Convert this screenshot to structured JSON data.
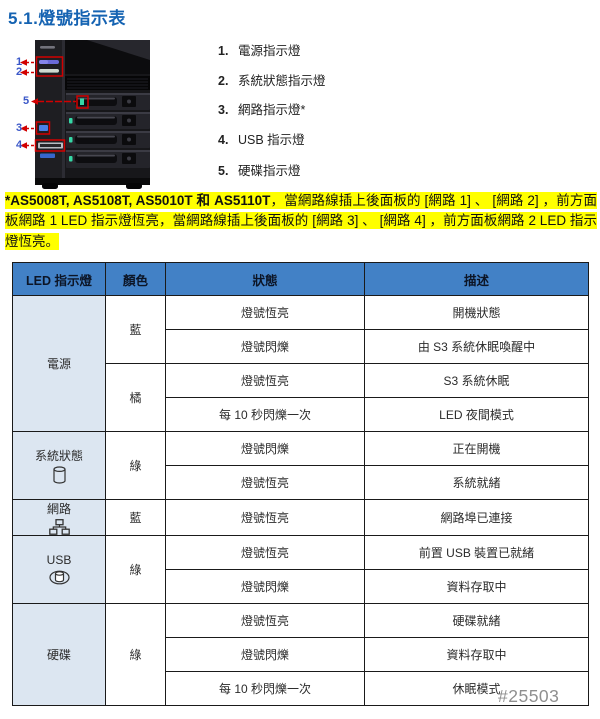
{
  "page": {
    "title": "5.1.燈號指示表",
    "watermark": "#25503"
  },
  "colors": {
    "title": "#1563b2",
    "note_highlight": "#ffff00",
    "table_header_bg": "#4281c6",
    "led_column_bg": "#dce6f1",
    "callout_arrow_red": "#d20000",
    "callout_number_blue": "#3a57c8"
  },
  "figure": {
    "callouts": [
      "1",
      "2",
      "3",
      "4",
      "5"
    ]
  },
  "legend": {
    "items": [
      {
        "num": "1.",
        "label": "電源指示燈"
      },
      {
        "num": "2.",
        "label": "系統狀態指示燈"
      },
      {
        "num": "3.",
        "label": "網路指示燈*"
      },
      {
        "num": "4.",
        "label": "USB 指示燈"
      },
      {
        "num": "5.",
        "label": "硬碟指示燈"
      }
    ]
  },
  "note": {
    "bold_part": "*AS5008T, AS5108T, AS5010T 和 AS5110T",
    "rest": "，當網路線插上後面板的 [網路 1] 、 [網路 2] ，前方面板網路 1 LED 指示燈恆亮，當網路線插上後面板的 [網路 3] 、 [網路 4] ，前方面板網路 2 LED 指示燈恆亮。"
  },
  "table": {
    "headers": [
      "LED 指示燈",
      "顏色",
      "狀態",
      "描述"
    ],
    "groups": [
      {
        "led": "電源",
        "icon": null,
        "colors": [
          {
            "color": "藍",
            "states": [
              {
                "state": "燈號恆亮",
                "desc": "開機狀態"
              },
              {
                "state": "燈號閃爍",
                "desc": "由 S3 系統休眠喚醒中"
              }
            ]
          },
          {
            "color": "橘",
            "states": [
              {
                "state": "燈號恆亮",
                "desc": "S3 系統休眠"
              },
              {
                "state": "每 10 秒閃爍一次",
                "desc": "LED 夜間模式"
              }
            ]
          }
        ]
      },
      {
        "led": "系統狀態",
        "icon": "cylinder-icon",
        "colors": [
          {
            "color": "綠",
            "states": [
              {
                "state": "燈號閃爍",
                "desc": "正在開機"
              },
              {
                "state": "燈號恆亮",
                "desc": "系統就緒"
              }
            ]
          }
        ]
      },
      {
        "led": "網路",
        "icon": "network-icon",
        "colors": [
          {
            "color": "藍",
            "states": [
              {
                "state": "燈號恆亮",
                "desc": "網路埠已連接"
              }
            ]
          }
        ]
      },
      {
        "led": "USB",
        "icon": "usb-icon",
        "colors": [
          {
            "color": "綠",
            "states": [
              {
                "state": "燈號恆亮",
                "desc": "前置 USB 裝置已就緒"
              },
              {
                "state": "燈號閃爍",
                "desc": "資料存取中"
              }
            ]
          }
        ]
      },
      {
        "led": "硬碟",
        "icon": null,
        "colors": [
          {
            "color": "綠",
            "states": [
              {
                "state": "燈號恆亮",
                "desc": "硬碟就緒"
              },
              {
                "state": "燈號閃爍",
                "desc": "資料存取中"
              },
              {
                "state": "每 10 秒閃爍一次",
                "desc": "休眠模式"
              }
            ]
          }
        ]
      }
    ]
  }
}
